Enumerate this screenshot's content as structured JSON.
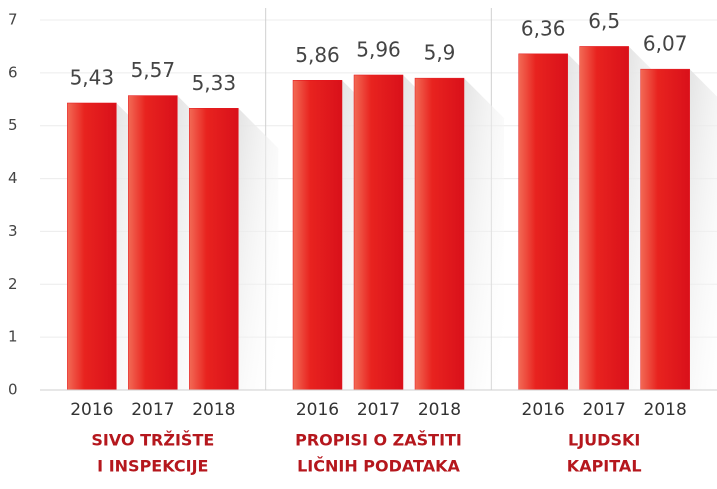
{
  "chart_data": {
    "type": "grouped_bar",
    "groups": [
      {
        "name": [
          "SIVO TRŽIŠTE",
          "I INSPEKCIJE"
        ],
        "categories": [
          "2016",
          "2017",
          "2018"
        ],
        "values": [
          5.43,
          5.57,
          5.33
        ],
        "value_labels": [
          "5,43",
          "5,57",
          "5,33"
        ]
      },
      {
        "name": [
          "PROPISI O ZAŠTITI",
          "LIČNIH PODATAKA"
        ],
        "categories": [
          "2016",
          "2017",
          "2018"
        ],
        "values": [
          5.86,
          5.96,
          5.9
        ],
        "value_labels": [
          "5,86",
          "5,96",
          "5,9"
        ]
      },
      {
        "name": [
          "LJUDSKI",
          "KAPITAL"
        ],
        "categories": [
          "2016",
          "2017",
          "2018"
        ],
        "values": [
          6.36,
          6.5,
          6.07
        ],
        "value_labels": [
          "6,36",
          "6,5",
          "6,07"
        ]
      }
    ],
    "color": "#e3141b",
    "ylim": [
      0,
      7
    ],
    "yticks": [
      0,
      1,
      2,
      3,
      4,
      5,
      6,
      7
    ],
    "grid": true
  }
}
